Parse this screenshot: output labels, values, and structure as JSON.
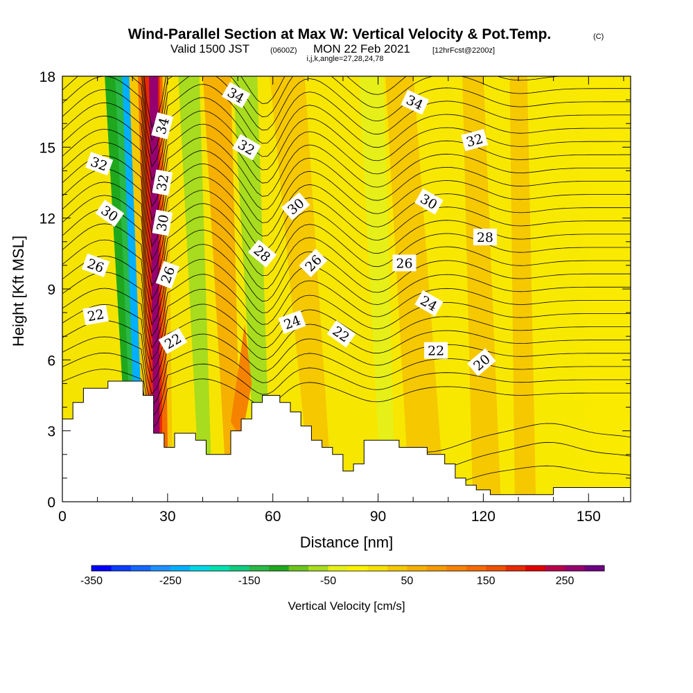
{
  "chart_data": {
    "type": "heatmap",
    "title": "Wind-Parallel Section at Max W: Vertical Velocity & Pot.Temp.",
    "title_mark": "(C)",
    "subtitle": {
      "valid": "Valid 1500 JST",
      "utc": "(0600Z)",
      "date": "MON 22 Feb 2021",
      "fcst": "[12hrFcst@2200z]",
      "params": "i,j,k,angle=27,28,24,78"
    },
    "xlabel": "Distance [nm]",
    "ylabel": "Height [Kft MSL]",
    "xlim": [
      0,
      162
    ],
    "ylim": [
      0,
      18
    ],
    "x_ticks": [
      "0",
      "30",
      "60",
      "90",
      "120",
      "150"
    ],
    "y_ticks": [
      "0",
      "3",
      "6",
      "9",
      "12",
      "15",
      "18"
    ],
    "colorbar": {
      "label": "Vertical Velocity [cm/s]",
      "tick_labels": [
        "-350",
        "-250",
        "-150",
        "-50",
        "50",
        "150",
        "250"
      ],
      "levels": [
        -350,
        -325,
        -300,
        -275,
        -250,
        -225,
        -200,
        -175,
        -150,
        -125,
        -100,
        -75,
        -50,
        -25,
        0,
        25,
        50,
        75,
        100,
        125,
        150,
        175,
        200,
        225,
        250,
        275,
        300
      ],
      "colors": [
        "#0000ff",
        "#0a3cff",
        "#1566ff",
        "#1f8fff",
        "#00b0ff",
        "#00d6e6",
        "#00e0b0",
        "#10cc80",
        "#2ab846",
        "#1fa81e",
        "#6cc41c",
        "#a8dc1e",
        "#e6f018",
        "#fff200",
        "#f7e100",
        "#f5c800",
        "#f5b000",
        "#f59a00",
        "#f58300",
        "#f56a00",
        "#f05000",
        "#e82a00",
        "#e00000",
        "#b8004a",
        "#96006e",
        "#6e0082"
      ]
    },
    "terrain_kft": [
      [
        0,
        3.5
      ],
      [
        3,
        3.5
      ],
      [
        3,
        4.2
      ],
      [
        6,
        4.2
      ],
      [
        6,
        4.8
      ],
      [
        13,
        4.8
      ],
      [
        13,
        5.1
      ],
      [
        23,
        5.1
      ],
      [
        23,
        4.5
      ],
      [
        26,
        4.5
      ],
      [
        26,
        2.9
      ],
      [
        29,
        2.9
      ],
      [
        29,
        2.3
      ],
      [
        32,
        2.3
      ],
      [
        32,
        2.9
      ],
      [
        38,
        2.9
      ],
      [
        38,
        2.6
      ],
      [
        41,
        2.6
      ],
      [
        41,
        2.0
      ],
      [
        48,
        2.0
      ],
      [
        48,
        3.0
      ],
      [
        51,
        3.0
      ],
      [
        51,
        3.5
      ],
      [
        54,
        3.5
      ],
      [
        54,
        4.2
      ],
      [
        57,
        4.2
      ],
      [
        57,
        4.5
      ],
      [
        62,
        4.5
      ],
      [
        62,
        4.2
      ],
      [
        65,
        4.2
      ],
      [
        65,
        3.8
      ],
      [
        68,
        3.8
      ],
      [
        68,
        3.2
      ],
      [
        71,
        3.2
      ],
      [
        71,
        2.6
      ],
      [
        74,
        2.6
      ],
      [
        74,
        2.3
      ],
      [
        77,
        2.3
      ],
      [
        77,
        2.0
      ],
      [
        80,
        2.0
      ],
      [
        80,
        1.3
      ],
      [
        83,
        1.3
      ],
      [
        83,
        1.6
      ],
      [
        86,
        1.6
      ],
      [
        86,
        2.6
      ],
      [
        96,
        2.6
      ],
      [
        96,
        2.3
      ],
      [
        104,
        2.3
      ],
      [
        104,
        2.0
      ],
      [
        109,
        2.0
      ],
      [
        109,
        1.6
      ],
      [
        112,
        1.6
      ],
      [
        112,
        1.0
      ],
      [
        115,
        1.0
      ],
      [
        115,
        0.7
      ],
      [
        118,
        0.7
      ],
      [
        118,
        0.5
      ],
      [
        122,
        0.5
      ],
      [
        122,
        0.3
      ],
      [
        140,
        0.3
      ],
      [
        140,
        0.6
      ],
      [
        162,
        0.6
      ]
    ],
    "w_field_centers": [
      {
        "x": 22,
        "w": -270
      },
      {
        "x": 28,
        "w": 290
      },
      {
        "x": 41,
        "w": -70
      },
      {
        "x": 57,
        "w": -80
      },
      {
        "x": 91,
        "w": -40
      }
    ],
    "theta_contours": [
      {
        "label": "34",
        "x": 28.5,
        "y": 15.9,
        "rot": -75
      },
      {
        "label": "32",
        "x": 28.5,
        "y": 13.5,
        "rot": -80
      },
      {
        "label": "30",
        "x": 28.5,
        "y": 11.8,
        "rot": -80
      },
      {
        "label": "26",
        "x": 30.0,
        "y": 9.6,
        "rot": -70
      },
      {
        "label": "22",
        "x": 31.5,
        "y": 6.8,
        "rot": -30
      },
      {
        "label": "32",
        "x": 10.5,
        "y": 14.3,
        "rot": 20
      },
      {
        "label": "30",
        "x": 13.5,
        "y": 12.2,
        "rot": 35
      },
      {
        "label": "26",
        "x": 9.5,
        "y": 10.0,
        "rot": 20
      },
      {
        "label": "22",
        "x": 9.5,
        "y": 7.9,
        "rot": -10
      },
      {
        "label": "34",
        "x": 49.5,
        "y": 17.2,
        "rot": 30
      },
      {
        "label": "32",
        "x": 52.5,
        "y": 15.0,
        "rot": 30
      },
      {
        "label": "30",
        "x": 66.5,
        "y": 12.5,
        "rot": -40
      },
      {
        "label": "28",
        "x": 57.0,
        "y": 10.5,
        "rot": 40
      },
      {
        "label": "26",
        "x": 71.5,
        "y": 10.1,
        "rot": -45
      },
      {
        "label": "24",
        "x": 65.5,
        "y": 7.6,
        "rot": -20
      },
      {
        "label": "22",
        "x": 79.5,
        "y": 7.1,
        "rot": 35
      },
      {
        "label": "34",
        "x": 100.5,
        "y": 16.9,
        "rot": 25
      },
      {
        "label": "32",
        "x": 117.5,
        "y": 15.3,
        "rot": -15
      },
      {
        "label": "30",
        "x": 104.5,
        "y": 12.7,
        "rot": 30
      },
      {
        "label": "28",
        "x": 120.5,
        "y": 11.2,
        "rot": 0
      },
      {
        "label": "26",
        "x": 97.5,
        "y": 10.1,
        "rot": 0
      },
      {
        "label": "24",
        "x": 104.5,
        "y": 8.4,
        "rot": 30
      },
      {
        "label": "22",
        "x": 106.5,
        "y": 6.4,
        "rot": 0
      },
      {
        "label": "20",
        "x": 119.5,
        "y": 5.9,
        "rot": -40
      }
    ]
  }
}
